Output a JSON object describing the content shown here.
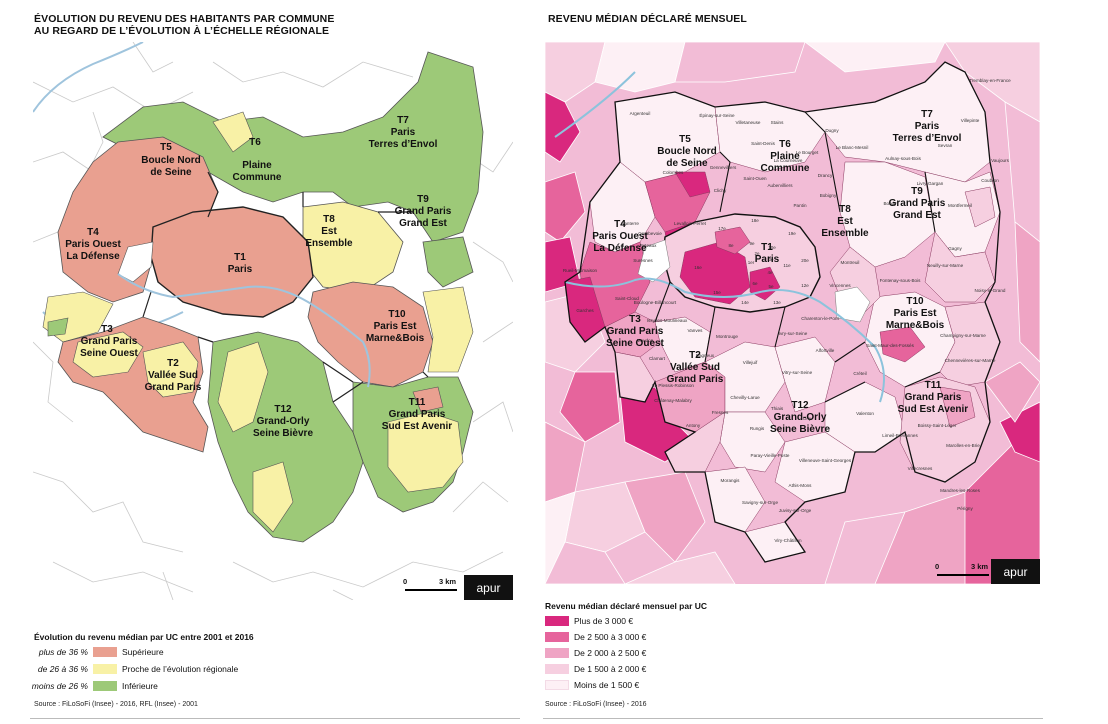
{
  "left": {
    "title_line1": "ÉVOLUTION DU REVENU DES HABITANTS PAR COMMUNE",
    "title_line2": "AU REGARD DE L’ÉVOLUTION À L’ÉCHELLE RÉGIONALE",
    "legend_title": "Évolution du revenu médian par UC entre 2001 et 2016",
    "legend": [
      {
        "prefix": "plus de 36 %",
        "label": "Supérieure",
        "color": "#e9a090"
      },
      {
        "prefix": "de 26 à 36 %",
        "label": "Proche de l’évolution régionale",
        "color": "#f8f1a6"
      },
      {
        "prefix": "moins de 26 %",
        "label": "Inférieure",
        "color": "#9dc978"
      }
    ],
    "source": "Source : FiLoSoFi (Insee) - 2016, RFL (Insee) - 2001",
    "scale_start": "0",
    "scale_end": "3 km",
    "logo": "apur",
    "territories": [
      {
        "code": "T5",
        "name1": "Boucle Nord",
        "name2": "de Seine"
      },
      {
        "code": "T6",
        "name1": "Plaine",
        "name2": "Commune"
      },
      {
        "code": "T7",
        "name1": "Paris",
        "name2": "Terres d’Envol"
      },
      {
        "code": "T4",
        "name1": "Paris Ouest",
        "name2": "La Défense"
      },
      {
        "code": "T8",
        "name1": "Est",
        "name2": "Ensemble"
      },
      {
        "code": "T9",
        "name1": "Grand Paris",
        "name2": "Grand Est"
      },
      {
        "code": "T1",
        "name1": "Paris",
        "name2": ""
      },
      {
        "code": "T10",
        "name1": "Paris Est",
        "name2": "Marne&Bois"
      },
      {
        "code": "T3",
        "name1": "Grand Paris",
        "name2": "Seine Ouest"
      },
      {
        "code": "T2",
        "name1": "Vallée Sud",
        "name2": "Grand Paris"
      },
      {
        "code": "T12",
        "name1": "Grand-Orly",
        "name2": "Seine Bièvre"
      },
      {
        "code": "T11",
        "name1": "Grand Paris",
        "name2": "Sud Est Avenir"
      }
    ]
  },
  "right": {
    "title": "REVENU MÉDIAN DÉCLARÉ MENSUEL",
    "legend_title": "Revenu médian déclaré mensuel par UC",
    "legend": [
      {
        "label": "Plus de 3 000 €",
        "color": "#d9287e"
      },
      {
        "label": "De 2 500 à 3 000 €",
        "color": "#e6649c"
      },
      {
        "label": "De 2 000 à 2 500 €",
        "color": "#efa4c4"
      },
      {
        "label": "De 1 500 à 2 000 €",
        "color": "#f6cfe0"
      },
      {
        "label": "Moins de 1 500 €",
        "color": "#fdf0f5"
      }
    ],
    "source": "Source : FiLoSoFi (Insee) - 2016",
    "scale_start": "0",
    "scale_end": "3 km",
    "logo": "apur",
    "communes": {
      "tremblay": "Tremblay-en-France",
      "villepinte": "Villepinte",
      "argenteuil": "Argenteuil",
      "epinay": "Épinay-sur-Seine",
      "villetaneuse": "Villetaneuse",
      "stains": "Stains",
      "dugny": "Dugny",
      "colombes": "Colombes",
      "gennevilliers": "Gennevilliers",
      "saint_denis": "Saint-Denis",
      "la_courneuve": "La Courneuve",
      "le_bourget": "Le Bourget",
      "le_blanc_mesnil": "Le Blanc-Mesnil",
      "aulnay": "Aulnay-sous-Bois",
      "sevran": "Sevran",
      "vaujours": "Vaujours",
      "clichy": "Clichy",
      "drancy": "Drancy",
      "aubervilliers": "Aubervilliers",
      "saint_ouen": "Saint-Ouen",
      "bobigny": "Bobigny",
      "livry": "Livry-Gargan",
      "coubron": "Coubron",
      "nanterre": "Nanterre",
      "courbevoie": "Courbevoie",
      "levallois": "Levallois-Perret",
      "pantin": "Pantin",
      "bondy": "Bondy",
      "montfermeil": "Montfermeil",
      "puteaux": "Puteaux",
      "suresnes": "Suresnes",
      "montreuil": "Montreuil",
      "gagny": "Gagny",
      "rueil": "Rueil-Malmaison",
      "boulogne": "Boulogne-Billancourt",
      "vincennes": "Vincennes",
      "neuilly_marne": "Neuilly-sur-Marne",
      "garches": "Garches",
      "saint_cloud": "Saint-Cloud",
      "issy": "Issy-les-Moulineaux",
      "fontenay": "Fontenay-sous-Bois",
      "noisy": "Noisy-le-Grand",
      "meudon": "Meudon",
      "vanves": "Vanves",
      "montrouge": "Montrouge",
      "ivry": "Ivry-sur-Seine",
      "charenton": "Charenton-le-Pont",
      "saint_maur": "Saint-Maur-des-Fossés",
      "champigny": "Champigny-sur-Marne",
      "clamart": "Clamart",
      "bagneux": "Bagneux",
      "vitry": "Vitry-sur-Seine",
      "alfortville": "Alfortville",
      "creteil": "Créteil",
      "chennevieres": "Chennevières-sur-Marne",
      "le_plessis": "Le Plessis-Robinson",
      "villejuif": "Villejuif",
      "chatenay": "Châtenay-Malabry",
      "chevilly": "Chevilly-Larue",
      "thiais": "Thiais",
      "orly": "Orly",
      "valenton": "Valenton",
      "boissy": "Boissy-Saint-Léger",
      "antony": "Antony",
      "fresnes": "Fresnes",
      "rungis": "Rungis",
      "villeneuve_georges": "Villeneuve-Saint-Georges",
      "limeil": "Limeil-Brévannes",
      "marolles": "Marolles-en-Brie",
      "villecresnes": "Villecresnes",
      "mandres": "Mandres-les-Roses",
      "perigny": "Périgny",
      "athis": "Athis-Mons",
      "morangis": "Morangis",
      "savigny": "Savigny-sur-Orge",
      "juvisy": "Juvisy-sur-Orge",
      "viry": "Viry-Châtillon",
      "paray": "Paray-Vieille-Poste"
    },
    "territories": [
      {
        "code": "T7",
        "name1": "Paris",
        "name2": "Terres d’Envol"
      },
      {
        "code": "T5",
        "name1": "Boucle Nord",
        "name2": "de Seine"
      },
      {
        "code": "T6",
        "name1": "Plaine",
        "name2": "Commune"
      },
      {
        "code": "T9",
        "name1": "Grand Paris",
        "name2": "Grand Est"
      },
      {
        "code": "T8",
        "name1": "Est",
        "name2": "Ensemble"
      },
      {
        "code": "T4",
        "name1": "Paris Ouest",
        "name2": "La Défense"
      },
      {
        "code": "T1",
        "name1": "Paris",
        "name2": ""
      },
      {
        "code": "T10",
        "name1": "Paris Est",
        "name2": "Marne&Bois"
      },
      {
        "code": "T3",
        "name1": "Grand Paris",
        "name2": "Seine Ouest"
      },
      {
        "code": "T2",
        "name1": "Vallée Sud",
        "name2": "Grand Paris"
      },
      {
        "code": "T12",
        "name1": "Grand-Orly",
        "name2": "Seine Bièvre"
      },
      {
        "code": "T11",
        "name1": "Grand Paris",
        "name2": "Sud Est Avenir"
      }
    ],
    "arrondissements": [
      "17e",
      "18e",
      "19e",
      "16e",
      "8e",
      "9e",
      "10e",
      "2e",
      "3e",
      "11e",
      "20e",
      "1er",
      "4e",
      "6e",
      "5e",
      "15e",
      "14e",
      "13e",
      "12e"
    ]
  }
}
